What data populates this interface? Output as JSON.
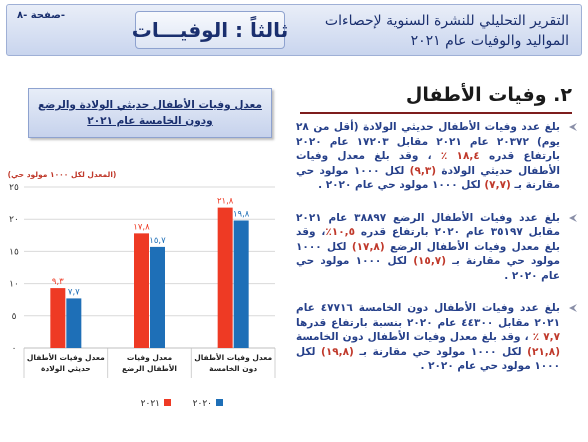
{
  "header": {
    "page_label": "صفحة -٨-",
    "section_title": "ثالثاً : الوفيـــات",
    "report_title_line1": "التقرير التحليلي للنشرة السنوية لإحصاءات",
    "report_title_line2": "المواليد والوفيات عام ٢٠٢١"
  },
  "section": {
    "heading": "٢. وفيات الأطفال"
  },
  "bullets": [
    {
      "parts": [
        {
          "t": "بلغ عدد وفيات الأطفال حديثي الولادة (أقل من ٢٨ يوم) ٢٠٣٧٢ عام ٢٠٢١ مقابل ١٧٢٠٣ عام ٢٠٢٠ بارتفاع قدره ",
          "hl": false
        },
        {
          "t": "١٨,٤ ٪",
          "hl": true
        },
        {
          "t": " ، وقد بلغ معدل وفيات الأطفال حديثي الولادة ",
          "hl": false
        },
        {
          "t": "(٩,٣)",
          "hl": true
        },
        {
          "t": " لكل ١٠٠٠ مولود حي مقارنة بـ ",
          "hl": false
        },
        {
          "t": "(٧,٧)",
          "hl": true
        },
        {
          "t": " لكل ١٠٠٠ مولود حي عام ٢٠٢٠ .",
          "hl": false
        }
      ]
    },
    {
      "parts": [
        {
          "t": "بلغ عدد وفيات الأطفال الرضع ٣٨٨٩٧ عام ٢٠٢١ مقابل ٣٥١٩٧ عام ٢٠٢٠ بارتفاع قدره ",
          "hl": false
        },
        {
          "t": "١٠,٥٪",
          "hl": true
        },
        {
          "t": "، وقد بلغ معدل وفيات الأطفال الرضع ",
          "hl": false
        },
        {
          "t": "(١٧,٨)",
          "hl": true
        },
        {
          "t": " لكل ١٠٠٠ مولود حي مقارنة بـ ",
          "hl": false
        },
        {
          "t": "(١٥,٧)",
          "hl": true
        },
        {
          "t": " لكل ١٠٠٠ مولود حي عام ٢٠٢٠ .",
          "hl": false
        }
      ]
    },
    {
      "parts": [
        {
          "t": "بلغ عدد وفيات الأطفال دون الخامسة ٤٧٧١٦ عام ٢٠٢١ مقابل ٤٤٣٠٠ عام ٢٠٢٠ بنسبة بارتفاع قدرها ",
          "hl": false
        },
        {
          "t": "٧,٧ ٪",
          "hl": true
        },
        {
          "t": " ، وقد بلغ معدل وفيات الأطفال دون الخامسة ",
          "hl": false
        },
        {
          "t": "(٢١,٨)",
          "hl": true
        },
        {
          "t": " لكل ١٠٠٠ مولود حي مقارنة بـ ",
          "hl": false
        },
        {
          "t": "(١٩,٨)",
          "hl": true
        },
        {
          "t": " لكل ١٠٠٠ مولود حي عام ٢٠٢٠ .",
          "hl": false
        }
      ]
    }
  ],
  "chart_data": {
    "type": "bar",
    "title": "معدل وفيات الأطفال حديثي الولادة والرضع ودون الخامسة عام ٢٠٢١",
    "ylabel": "(المعدل لكل ١٠٠٠ مولود حي)",
    "ylim": [
      0,
      25
    ],
    "yticks": [
      0,
      5,
      10,
      15,
      20,
      25
    ],
    "ytick_labels": [
      "٠",
      "٥",
      "١٠",
      "١٥",
      "٢٠",
      "٢٥"
    ],
    "categories": [
      "معدل وفيات الأطفال حديثي الولادة",
      "معدل وفيات الأطفال الرضع",
      "معدل وفيات الأطفال دون الخامسة"
    ],
    "series": [
      {
        "name": "٢٠٢١",
        "values": [
          9.3,
          17.8,
          21.8
        ],
        "labels": [
          "٩,٣",
          "١٧,٨",
          "٢١,٨"
        ],
        "color": "#ee3a24"
      },
      {
        "name": "٢٠٢٠",
        "values": [
          7.7,
          15.7,
          19.8
        ],
        "labels": [
          "٧,٧",
          "١٥,٧",
          "١٩,٨"
        ],
        "color": "#1e6fb7"
      }
    ],
    "grid": true,
    "legend": "bottom"
  },
  "colors": {
    "accent": "#1a2f6e",
    "highlight": "#c0392b",
    "rule": "#7d1d1d"
  },
  "icons": {
    "bullet": "arrow-bullet-icon"
  }
}
